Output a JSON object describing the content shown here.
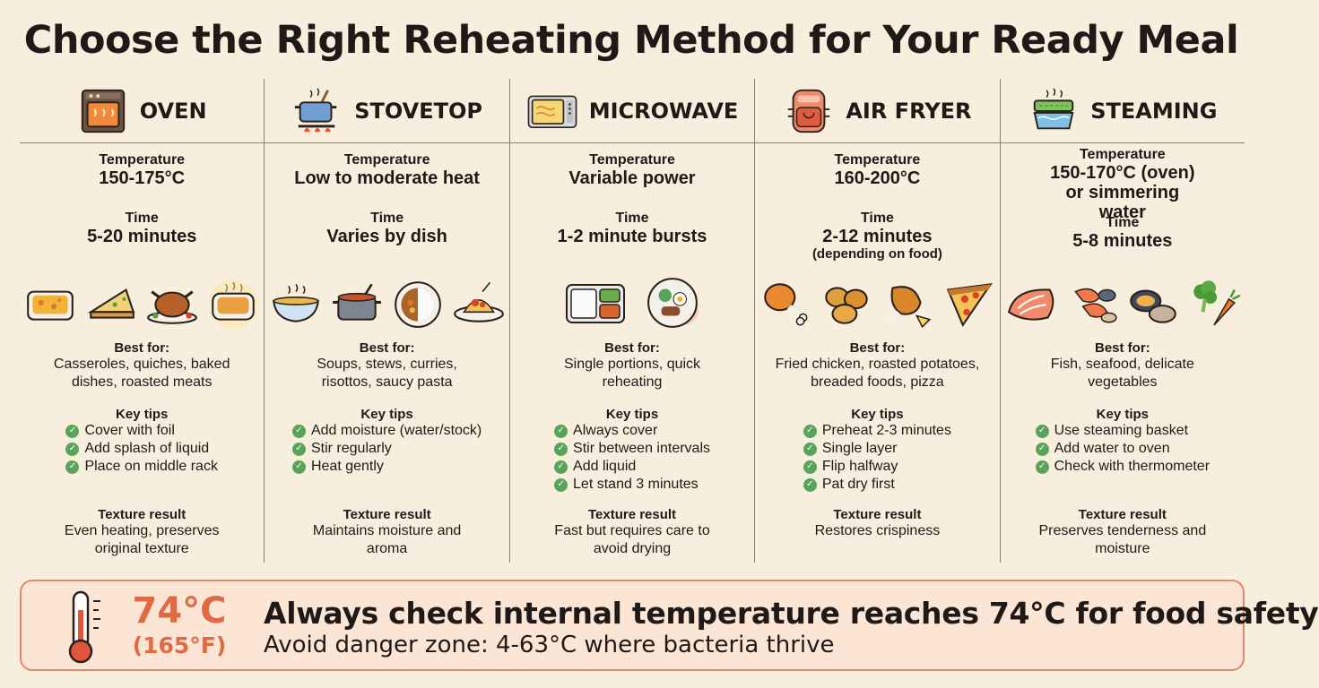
{
  "title": "Choose the Right Reheating Method for Your Ready Meal",
  "labels": {
    "temperature": "Temperature",
    "time": "Time",
    "best_for": "Best for:",
    "key_tips": "Key tips",
    "texture": "Texture result"
  },
  "colors": {
    "background": "#f8eedd",
    "check_green": "#5aa35a",
    "accent_orange": "#e06a43",
    "banner_bg": "#fbe5d4",
    "divider": "#8b7f73"
  },
  "methods": [
    {
      "name": "OVEN",
      "icon": "oven-icon",
      "temperature": "150-175°C",
      "time": "5-20 minutes",
      "best_for": "Casseroles, quiches, baked dishes, roasted meats",
      "tips": [
        "Cover with foil",
        "Add splash of liquid",
        "Place on middle rack"
      ],
      "texture": "Even heating, preserves original texture",
      "foods": [
        "casserole-icon",
        "quiche-icon",
        "roast-chicken-icon",
        "baked-dish-icon"
      ]
    },
    {
      "name": "STOVETOP",
      "icon": "pot-on-stove-icon",
      "temperature": "Low to moderate heat",
      "time": "Varies by dish",
      "best_for": "Soups, stews, curries, risottos, saucy pasta",
      "tips": [
        "Add moisture (water/stock)",
        "Stir regularly",
        "Heat gently"
      ],
      "texture": "Maintains moisture and aroma",
      "foods": [
        "soup-bowl-icon",
        "stew-pot-icon",
        "curry-plate-icon",
        "pasta-plate-icon"
      ]
    },
    {
      "name": "MICROWAVE",
      "icon": "microwave-icon",
      "temperature": "Variable power",
      "time": "1-2 minute bursts",
      "best_for": "Single portions, quick reheating",
      "tips": [
        "Always cover",
        "Stir between intervals",
        "Add liquid",
        "Let stand 3 minutes"
      ],
      "texture": "Fast but requires care to avoid drying",
      "foods": [
        "meal-tray-icon",
        "plated-meal-icon"
      ]
    },
    {
      "name": "AIR FRYER",
      "icon": "air-fryer-icon",
      "temperature": "160-200°C",
      "time": "2-12 minutes",
      "time_note": "(depending on food)",
      "best_for": "Fried chicken, roasted potatoes, breaded foods, pizza",
      "tips": [
        "Preheat 2-3 minutes",
        "Single layer",
        "Flip halfway",
        "Pat dry first"
      ],
      "texture": "Restores crispiness",
      "foods": [
        "chicken-drumstick-icon",
        "roasted-potatoes-icon",
        "fried-chicken-icon",
        "pizza-slice-icon"
      ]
    },
    {
      "name": "STEAMING",
      "icon": "steamer-icon",
      "temperature": "150-170°C (oven) or simmering water",
      "time": "5-8 minutes",
      "best_for": "Fish, seafood, delicate vegetables",
      "tips": [
        "Use steaming basket",
        "Add water to oven",
        "Check with thermometer"
      ],
      "texture": "Preserves tenderness and moisture",
      "foods": [
        "salmon-icon",
        "shrimp-icon",
        "mussels-icon",
        "vegetables-icon"
      ]
    }
  ],
  "safety": {
    "temp_c": "74°C",
    "temp_f": "(165°F)",
    "message": "Always check internal temperature reaches 74°C for food safety",
    "submessage": "Avoid danger zone: 4-63°C where bacteria thrive",
    "icon": "thermometer-icon"
  }
}
